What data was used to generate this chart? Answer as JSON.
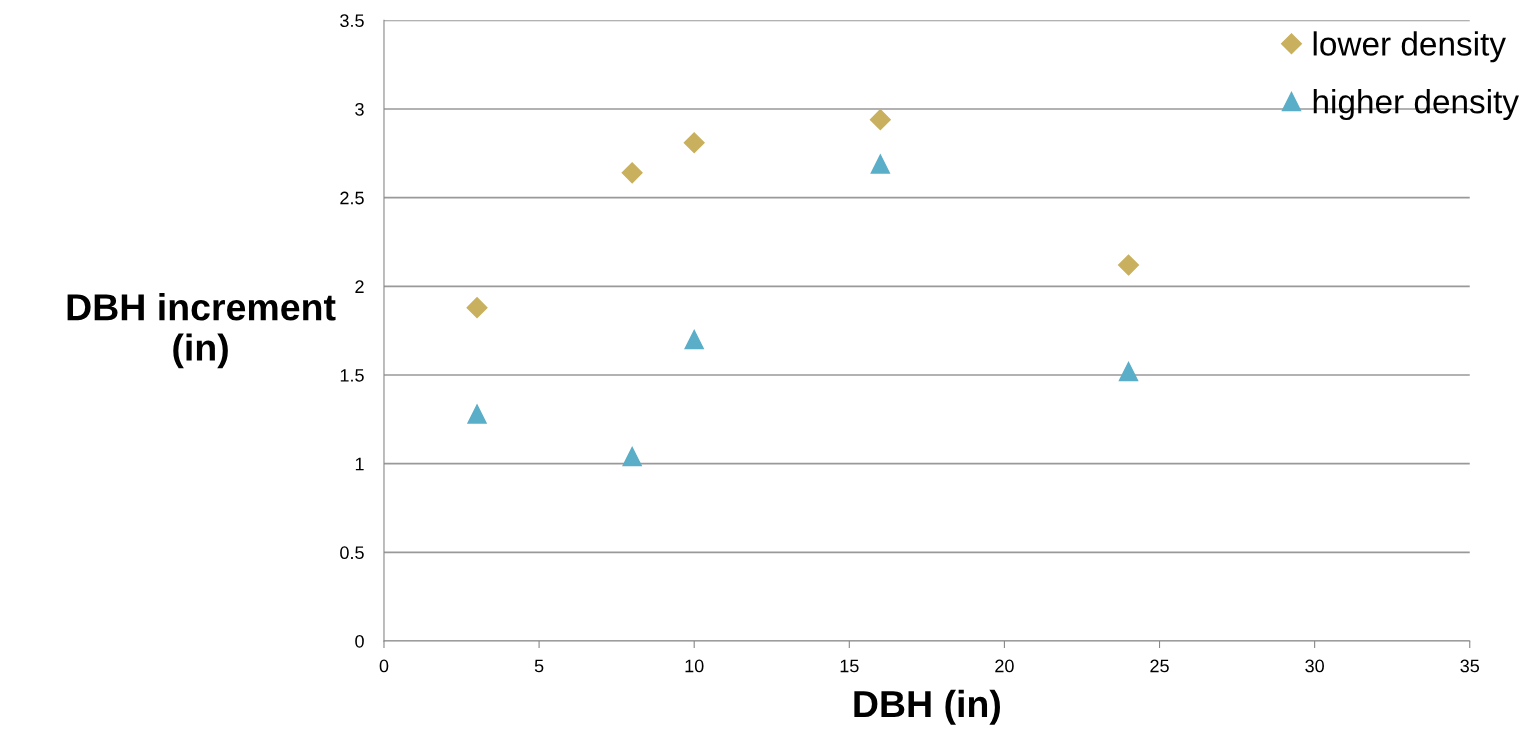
{
  "chart_data": {
    "type": "scatter",
    "xlabel": "DBH (in)",
    "ylabel": "DBH increment\n(in)",
    "series": [
      {
        "name": "lower density",
        "color": "#c9b05e",
        "marker": "diamond",
        "x": [
          3,
          8,
          10,
          16,
          24
        ],
        "values": [
          1.88,
          2.64,
          2.81,
          2.94,
          2.12
        ]
      },
      {
        "name": "higher density",
        "color": "#5aaec8",
        "marker": "triangle",
        "x": [
          3,
          8,
          10,
          16,
          24
        ],
        "values": [
          1.28,
          1.04,
          1.7,
          2.69,
          1.52
        ]
      }
    ],
    "xlim": [
      0,
      35
    ],
    "xticks": [
      0,
      5,
      10,
      15,
      20,
      25,
      30,
      35
    ],
    "ylim": [
      0,
      3.5
    ],
    "yticks": [
      0,
      0.5,
      1,
      1.5,
      2,
      2.5,
      3,
      3.5
    ],
    "grid": "y",
    "legend": "top right"
  }
}
